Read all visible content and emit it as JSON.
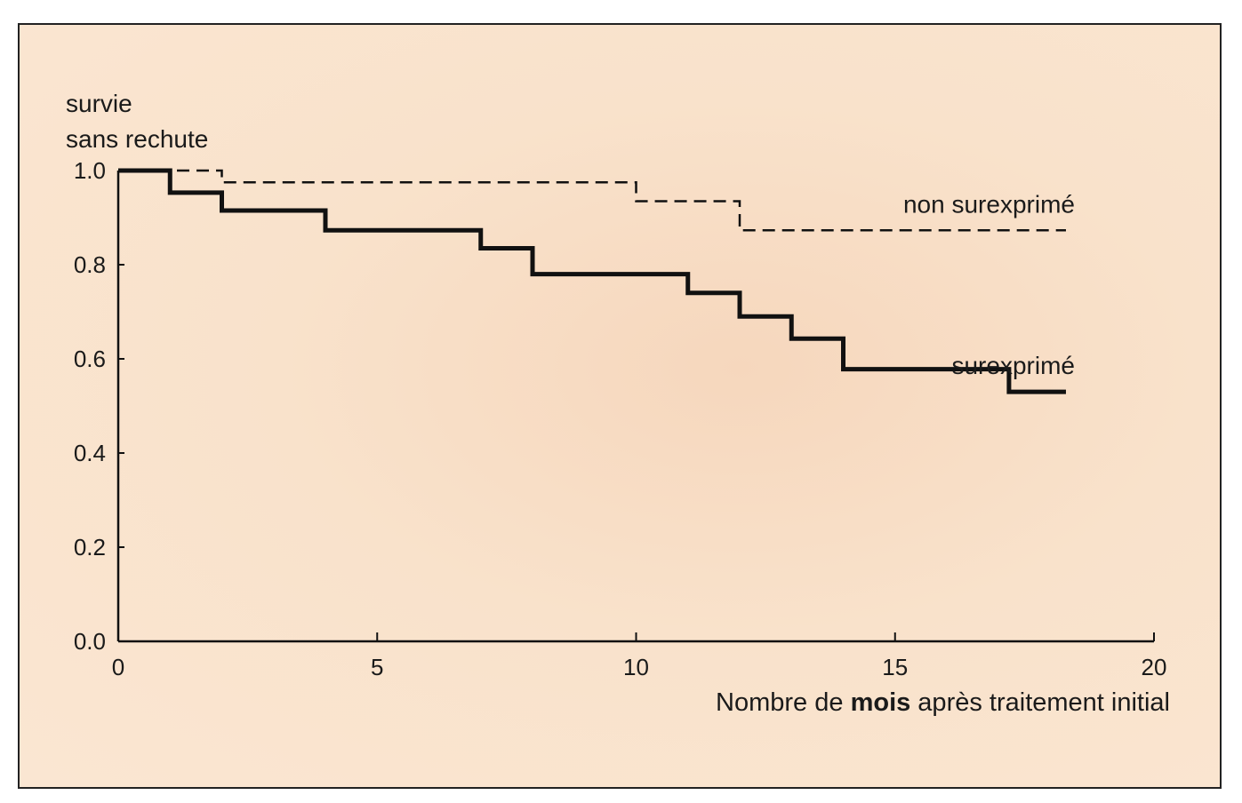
{
  "chart_data": {
    "type": "line",
    "step": true,
    "ylabel_lines": [
      "survie",
      "sans rechute"
    ],
    "xlabel_parts": [
      {
        "text": "Nombre de ",
        "bold": false
      },
      {
        "text": "mois",
        "bold": true
      },
      {
        "text": " après traitement initial",
        "bold": false
      }
    ],
    "xlim": [
      0,
      20
    ],
    "ylim": [
      0,
      1.0
    ],
    "xticks": [
      0,
      5,
      10,
      15,
      20
    ],
    "xtick_labels": [
      "0",
      "5",
      "10",
      "15",
      "20"
    ],
    "yticks": [
      0,
      0.2,
      0.4,
      0.6,
      0.8,
      1.0
    ],
    "ytick_labels": [
      "0.0",
      "0.2",
      "0.4",
      "0.6",
      "0.8",
      "1.0"
    ],
    "grid": false,
    "colors": {
      "line": "#111111",
      "background": "#f9e3cc"
    },
    "series": [
      {
        "name": "non surexprimé",
        "style": "dashed",
        "x": [
          0,
          2,
          10,
          12,
          18.3
        ],
        "y": [
          1.0,
          0.975,
          0.935,
          0.873,
          0.873
        ]
      },
      {
        "name": "surexprimé",
        "style": "solid",
        "x": [
          0,
          1,
          2,
          4,
          7,
          8,
          11,
          12,
          13,
          14,
          17.2,
          18.3
        ],
        "y": [
          1.0,
          0.953,
          0.915,
          0.873,
          0.835,
          0.78,
          0.74,
          0.69,
          0.643,
          0.578,
          0.53,
          0.53
        ]
      }
    ]
  }
}
